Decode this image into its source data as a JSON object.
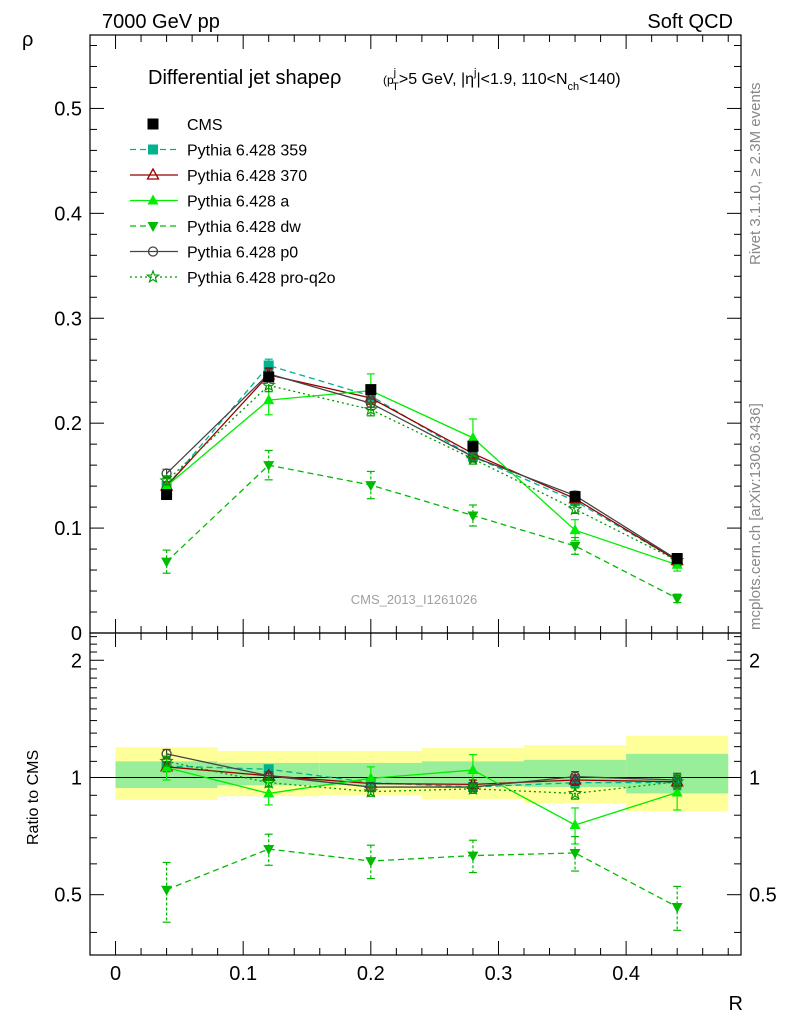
{
  "header": {
    "left": "7000 GeV pp",
    "right": "Soft QCD"
  },
  "side_labels": {
    "rivet": "Rivet 3.1.10, ≥ 2.3M events",
    "mcplots": "mcplots.cern.ch [arXiv:1306.3436]"
  },
  "watermark": "CMS_2013_I1261026",
  "chart_data": [
    {
      "type": "line",
      "title_main": "Differential jet shape",
      "title_rho": "ρ",
      "title_sub": {
        "a": "(p",
        "b": "j",
        "c": "T",
        "d": ">5 GeV, |η",
        "e": "j",
        "f": "|<1.9, 110<N",
        "g": "ch",
        "h": "<140)"
      },
      "ylabel": "ρ",
      "xlabel": "",
      "xlim": [
        -0.02,
        0.49
      ],
      "ylim": [
        0,
        0.57
      ],
      "y_ticks": [
        0.1,
        0.2,
        0.3,
        0.4,
        0.5
      ],
      "y_tick_labels": [
        "0.1",
        "0.2",
        "0.3",
        "0.4",
        "0.5"
      ],
      "y_zero_label": "0",
      "x": [
        0.04,
        0.12,
        0.2,
        0.28,
        0.36,
        0.44
      ],
      "data": {
        "name": "CMS",
        "values": [
          0.132,
          0.244,
          0.232,
          0.178,
          0.13,
          0.071
        ],
        "errors": [
          0.004,
          0.005,
          0.005,
          0.004,
          0.003,
          0.002
        ]
      },
      "series": [
        {
          "name": "Pythia 6.428 359",
          "color": "#00b38f",
          "dash": "6,4",
          "marker": "square",
          "values": [
            0.14,
            0.255,
            0.226,
            0.168,
            0.126,
            0.069
          ],
          "errors": [
            0.004,
            0.006,
            0.006,
            0.005,
            0.004,
            0.003
          ]
        },
        {
          "name": "Pythia 6.428 370",
          "color": "#990000",
          "dash": "",
          "marker": "triangle-open",
          "values": [
            0.14,
            0.246,
            0.224,
            0.171,
            0.128,
            0.069
          ],
          "errors": [
            0.004,
            0.006,
            0.006,
            0.005,
            0.004,
            0.003
          ]
        },
        {
          "name": "Pythia 6.428 a",
          "color": "#00ee00",
          "dash": "",
          "marker": "triangle",
          "values": [
            0.14,
            0.222,
            0.231,
            0.186,
            0.098,
            0.065
          ],
          "errors": [
            0.01,
            0.014,
            0.016,
            0.018,
            0.01,
            0.006
          ]
        },
        {
          "name": "Pythia 6.428 dw",
          "color": "#00bb00",
          "dash": "6,4",
          "marker": "triangle-down",
          "values": [
            0.068,
            0.16,
            0.141,
            0.112,
            0.083,
            0.033
          ],
          "errors": [
            0.011,
            0.014,
            0.013,
            0.01,
            0.008,
            0.004
          ]
        },
        {
          "name": "Pythia 6.428 p0",
          "color": "#444444",
          "dash": "",
          "marker": "circle-open",
          "values": [
            0.152,
            0.247,
            0.219,
            0.168,
            0.131,
            0.07
          ],
          "errors": [
            0.004,
            0.006,
            0.006,
            0.005,
            0.004,
            0.003
          ]
        },
        {
          "name": "Pythia 6.428 pro-q2o",
          "color": "#009900",
          "dash": "2,3",
          "marker": "star",
          "values": [
            0.145,
            0.236,
            0.213,
            0.166,
            0.118,
            0.069
          ],
          "errors": [
            0.004,
            0.006,
            0.006,
            0.005,
            0.004,
            0.003
          ]
        }
      ],
      "grid": false,
      "legend_position": "top-left"
    },
    {
      "type": "line",
      "title": "",
      "ylabel": "Ratio to CMS",
      "xlabel": "R",
      "xlim": [
        -0.02,
        0.49
      ],
      "ylim": [
        0.35,
        2.35
      ],
      "scale_y": "log",
      "x_ticks": [
        0,
        0.1,
        0.2,
        0.3,
        0.4
      ],
      "x_tick_labels": [
        "0",
        "0.1",
        "0.2",
        "0.3",
        "0.4"
      ],
      "y_ticks": [
        0.5,
        1,
        2
      ],
      "y_tick_labels": [
        "0.5",
        "1",
        "2"
      ],
      "bands": {
        "bin_edges": [
          -0.0,
          0.08,
          0.16,
          0.24,
          0.32,
          0.4,
          0.48
        ],
        "yellow_low": [
          0.875,
          0.895,
          0.9,
          0.88,
          0.86,
          0.82
        ],
        "yellow_high": [
          1.195,
          1.17,
          1.17,
          1.19,
          1.21,
          1.28
        ],
        "green_low": [
          0.94,
          0.955,
          0.955,
          0.95,
          0.945,
          0.91
        ],
        "green_high": [
          1.1,
          1.09,
          1.09,
          1.1,
          1.11,
          1.15
        ]
      },
      "x": [
        0.04,
        0.12,
        0.2,
        0.28,
        0.36,
        0.44
      ],
      "series": [
        {
          "name": "Pythia 6.428 359",
          "values": [
            1.07,
            1.05,
            0.97,
            0.945,
            0.97,
            0.97
          ],
          "errors": [
            0.03,
            0.025,
            0.025,
            0.025,
            0.03,
            0.04
          ]
        },
        {
          "name": "Pythia 6.428 370",
          "values": [
            1.065,
            1.01,
            0.965,
            0.96,
            0.985,
            0.975
          ],
          "errors": [
            0.03,
            0.025,
            0.025,
            0.025,
            0.03,
            0.04
          ]
        },
        {
          "name": "Pythia 6.428 a",
          "values": [
            1.06,
            0.91,
            0.995,
            1.045,
            0.755,
            0.915
          ],
          "errors": [
            0.075,
            0.06,
            0.07,
            0.1,
            0.08,
            0.09
          ]
        },
        {
          "name": "Pythia 6.428 dw",
          "values": [
            0.515,
            0.655,
            0.61,
            0.63,
            0.64,
            0.465
          ],
          "errors": [
            0.09,
            0.06,
            0.06,
            0.06,
            0.065,
            0.06
          ]
        },
        {
          "name": "Pythia 6.428 p0",
          "values": [
            1.15,
            1.01,
            0.945,
            0.945,
            1.005,
            0.985
          ],
          "errors": [
            0.03,
            0.025,
            0.025,
            0.025,
            0.03,
            0.04
          ]
        },
        {
          "name": "Pythia 6.428 pro-q2o",
          "values": [
            1.1,
            0.97,
            0.92,
            0.935,
            0.91,
            0.975
          ],
          "errors": [
            0.03,
            0.025,
            0.025,
            0.025,
            0.03,
            0.04
          ]
        }
      ],
      "reference_line": 1
    }
  ]
}
